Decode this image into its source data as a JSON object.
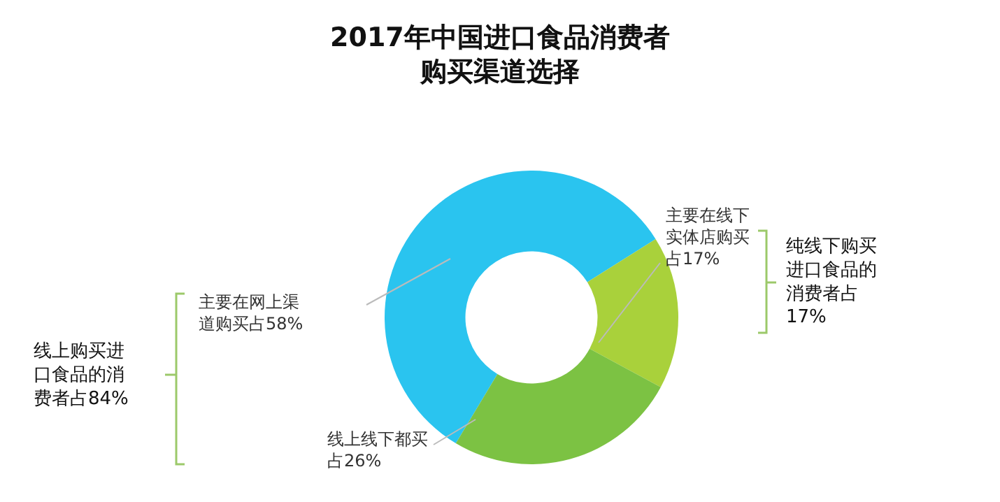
{
  "chart_data": {
    "type": "donut",
    "title": "2017年中国进口食品消费者购买渠道选择",
    "categories": [
      "主要在网上渠道购买占58%",
      "主要在线下实体店购买占17%",
      "线上线下都买占26%"
    ],
    "values": [
      58,
      17,
      26
    ],
    "colors": [
      "#2ac4ef",
      "#a9d13b",
      "#7cc243"
    ],
    "legend": false,
    "annotations": [
      "线上购买进口食品的消费者占84%",
      "纯线下购买进口食品的消费者占17%"
    ]
  }
}
